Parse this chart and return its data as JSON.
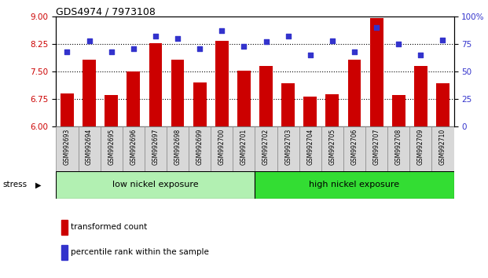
{
  "title": "GDS4974 / 7973108",
  "samples": [
    "GSM992693",
    "GSM992694",
    "GSM992695",
    "GSM992696",
    "GSM992697",
    "GSM992698",
    "GSM992699",
    "GSM992700",
    "GSM992701",
    "GSM992702",
    "GSM992703",
    "GSM992704",
    "GSM992705",
    "GSM992706",
    "GSM992707",
    "GSM992708",
    "GSM992709",
    "GSM992710"
  ],
  "bar_values": [
    6.9,
    7.82,
    6.87,
    7.5,
    8.27,
    7.82,
    7.2,
    8.35,
    7.53,
    7.65,
    7.18,
    6.82,
    6.88,
    7.82,
    8.97,
    6.85,
    7.65,
    7.18
  ],
  "dot_values_pct": [
    68,
    78,
    68,
    71,
    82,
    80,
    71,
    87,
    73,
    77,
    82,
    65,
    78,
    68,
    90,
    75,
    65,
    79
  ],
  "ylim_left": [
    6,
    9
  ],
  "ylim_right": [
    0,
    100
  ],
  "yticks_left": [
    6,
    6.75,
    7.5,
    8.25,
    9
  ],
  "yticks_right": [
    0,
    25,
    50,
    75,
    100
  ],
  "bar_color": "#cc0000",
  "dot_color": "#3333cc",
  "groups": [
    {
      "label": "low nickel exposure",
      "start": 0,
      "end": 9,
      "color": "#b2f0b2"
    },
    {
      "label": "high nickel exposure",
      "start": 9,
      "end": 18,
      "color": "#33dd33"
    }
  ],
  "stress_label": "stress",
  "legend_bar": "transformed count",
  "legend_dot": "percentile rank within the sample",
  "grid_dotted_values": [
    6.75,
    7.5,
    8.25
  ],
  "tick_label_color_left": "#cc0000",
  "tick_label_color_right": "#3333cc",
  "xticklabel_bg": "#d8d8d8"
}
